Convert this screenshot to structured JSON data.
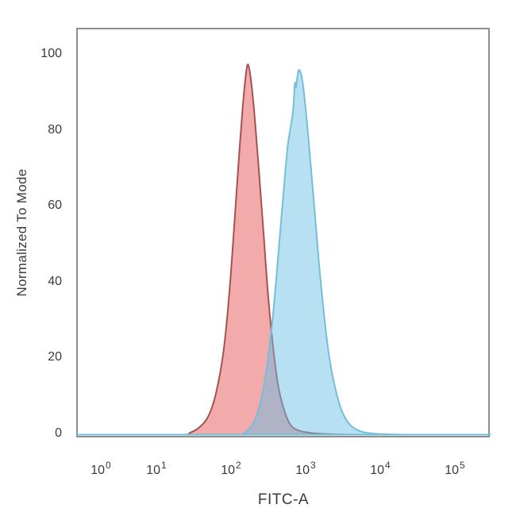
{
  "chart_data": {
    "type": "area",
    "subtype": "flow-cytometry-overlay-histogram",
    "title": "",
    "xlabel": "FITC-A",
    "ylabel": "Normalized To Mode",
    "x_scale": "log10",
    "xlim_log10": [
      -0.43,
      5.47
    ],
    "ylim": [
      0,
      100
    ],
    "grid": false,
    "legend": null,
    "background": "#ffffff",
    "frame_color": "#8e8e8e",
    "text_color": "#3a3a3a",
    "x_ticks": [
      {
        "base": "10",
        "exp": "0",
        "log10": 0
      },
      {
        "base": "10",
        "exp": "1",
        "log10": 1
      },
      {
        "base": "10",
        "exp": "2",
        "log10": 2
      },
      {
        "base": "10",
        "exp": "3",
        "log10": 3
      },
      {
        "base": "10",
        "exp": "4",
        "log10": 4
      },
      {
        "base": "10",
        "exp": "5",
        "log10": 5
      }
    ],
    "y_ticks": [
      0,
      20,
      40,
      60,
      80,
      100
    ],
    "series": [
      {
        "name": "red-histogram",
        "fill": "rgba(229,85,85,0.5)",
        "stroke": "#a65252",
        "stroke_width": 2,
        "points_log10_value": [
          [
            1.3,
            0
          ],
          [
            1.45,
            0.5
          ],
          [
            1.58,
            2
          ],
          [
            1.7,
            5
          ],
          [
            1.8,
            11
          ],
          [
            1.9,
            22
          ],
          [
            1.98,
            38
          ],
          [
            2.05,
            57
          ],
          [
            2.11,
            74
          ],
          [
            2.16,
            87
          ],
          [
            2.2,
            95
          ],
          [
            2.23,
            97.5
          ],
          [
            2.27,
            93
          ],
          [
            2.32,
            83
          ],
          [
            2.38,
            68
          ],
          [
            2.44,
            52
          ],
          [
            2.5,
            36
          ],
          [
            2.57,
            22
          ],
          [
            2.64,
            12
          ],
          [
            2.72,
            6
          ],
          [
            2.8,
            2.5
          ],
          [
            2.92,
            1
          ],
          [
            3.1,
            0.4
          ],
          [
            3.4,
            0.1
          ],
          [
            3.8,
            0
          ]
        ]
      },
      {
        "name": "cyan-histogram",
        "fill": "rgba(105,190,230,0.48)",
        "stroke": "#74bed8",
        "stroke_width": 2,
        "points_log10_value": [
          [
            2.05,
            0
          ],
          [
            2.18,
            0.5
          ],
          [
            2.3,
            3
          ],
          [
            2.4,
            9
          ],
          [
            2.49,
            19
          ],
          [
            2.57,
            33
          ],
          [
            2.64,
            49
          ],
          [
            2.7,
            63
          ],
          [
            2.76,
            76
          ],
          [
            2.83,
            85
          ],
          [
            2.855,
            92.5
          ],
          [
            2.87,
            91.5
          ],
          [
            2.905,
            96
          ],
          [
            2.95,
            94
          ],
          [
            3.0,
            86
          ],
          [
            3.06,
            73
          ],
          [
            3.12,
            59
          ],
          [
            3.18,
            45
          ],
          [
            3.25,
            31
          ],
          [
            3.32,
            20
          ],
          [
            3.4,
            12
          ],
          [
            3.49,
            6
          ],
          [
            3.6,
            2.5
          ],
          [
            3.72,
            1
          ],
          [
            3.85,
            0.4
          ],
          [
            4.05,
            0.15
          ],
          [
            4.4,
            0
          ]
        ]
      }
    ]
  }
}
